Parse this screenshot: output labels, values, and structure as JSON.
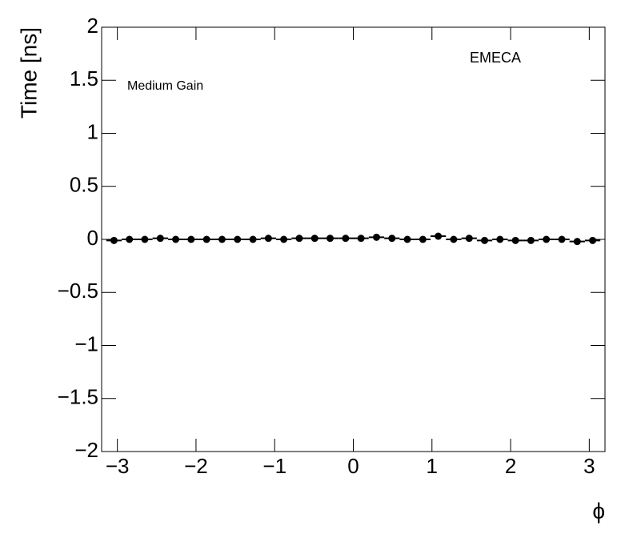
{
  "chart_data": {
    "type": "scatter",
    "x_label": "ϕ",
    "y_label": "Time [ns]",
    "annotations": [
      "EMECA",
      "Medium Gain"
    ],
    "x": [
      -3.043,
      -2.847,
      -2.651,
      -2.454,
      -2.258,
      -2.062,
      -1.865,
      -1.669,
      -1.473,
      -1.276,
      -1.08,
      -0.884,
      -0.687,
      -0.491,
      -0.295,
      -0.098,
      0.098,
      0.295,
      0.491,
      0.687,
      0.884,
      1.08,
      1.276,
      1.473,
      1.669,
      1.865,
      2.062,
      2.258,
      2.454,
      2.651,
      2.847,
      3.043
    ],
    "series": [
      {
        "color": "#000000",
        "values": [
          -0.01,
          0,
          0,
          0.01,
          0,
          0,
          0,
          0,
          0,
          0,
          0.01,
          0,
          0.01,
          0.01,
          0.01,
          0.01,
          0.01,
          0.02,
          0.01,
          0,
          0,
          0.03,
          0,
          0.01,
          -0.01,
          0,
          -0.01,
          -0.01,
          0,
          0,
          -0.02,
          -0.01
        ]
      }
    ],
    "xlim": [
      -3.2,
      3.2
    ],
    "xticks": [
      {
        "value": -3,
        "label": "−3"
      },
      {
        "value": -2,
        "label": "−2"
      },
      {
        "value": -1,
        "label": "−1"
      },
      0,
      1,
      2,
      3
    ],
    "ylim": [
      -2,
      2
    ],
    "yticks": [
      {
        "value": -2,
        "label": "−2"
      },
      {
        "value": -1.5,
        "label": "−1.5"
      },
      {
        "value": -1,
        "label": "−1"
      },
      {
        "value": -0.5,
        "label": "−0.5"
      },
      0,
      0.5,
      1,
      1.5,
      2
    ]
  }
}
